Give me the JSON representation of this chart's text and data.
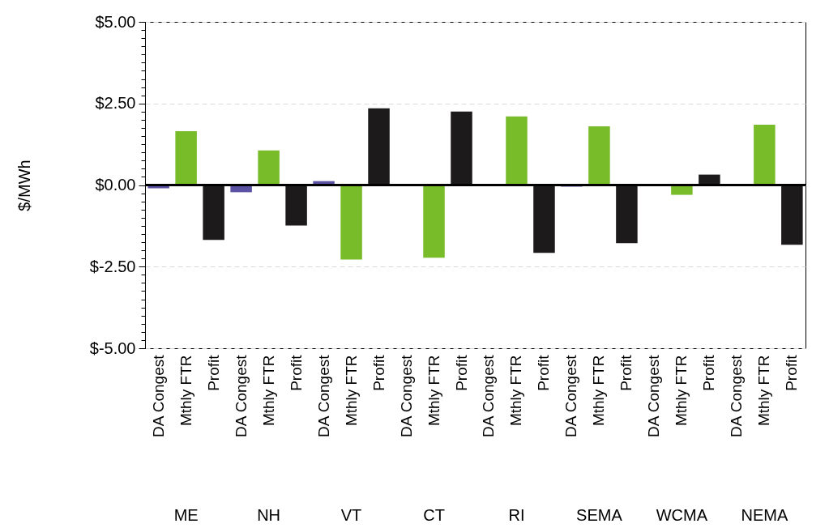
{
  "chart_data": {
    "type": "bar",
    "ylabel": "$/MWh",
    "categories": [
      "DA Congest",
      "Mthly FTR",
      "Profit",
      "DA Congest",
      "Mthly FTR",
      "Profit",
      "DA Congest",
      "Mthly FTR",
      "Profit",
      "DA Congest",
      "Mthly FTR",
      "Profit",
      "DA Congest",
      "Mthly FTR",
      "Profit",
      "DA Congest",
      "Mthly FTR",
      "Profit",
      "DA Congest",
      "Mthly FTR",
      "Profit",
      "DA Congest",
      "Mthly FTR",
      "Profit"
    ],
    "values": [
      -0.1,
      1.65,
      -1.68,
      -0.22,
      1.06,
      -1.24,
      0.12,
      -2.28,
      2.35,
      0,
      -2.23,
      2.25,
      0,
      2.1,
      -2.08,
      -0.05,
      1.8,
      -1.78,
      0,
      -0.3,
      0.32,
      0,
      1.85,
      -1.83
    ],
    "colors": [
      "#5b52a3",
      "#78bc2a",
      "#1c1a1a",
      "#5b52a3",
      "#78bc2a",
      "#1c1a1a",
      "#5b52a3",
      "#78bc2a",
      "#1c1a1a",
      "#5b52a3",
      "#78bc2a",
      "#1c1a1a",
      "#5b52a3",
      "#78bc2a",
      "#1c1a1a",
      "#5b52a3",
      "#78bc2a",
      "#1c1a1a",
      "#5b52a3",
      "#78bc2a",
      "#1c1a1a",
      "#5b52a3",
      "#78bc2a",
      "#1c1a1a"
    ],
    "annotations": [
      "ME",
      "NH",
      "VT",
      "CT",
      "RI",
      "SEMA",
      "WCMA",
      "NEMA"
    ],
    "ylim": [
      -5,
      5
    ],
    "yticks": [
      {
        "value": -5,
        "label": "$-5.00"
      },
      {
        "value": -4.75,
        "label": null
      },
      {
        "value": -4.5,
        "label": null
      },
      {
        "value": -4.25,
        "label": null
      },
      {
        "value": -4,
        "label": null
      },
      {
        "value": -3.75,
        "label": null
      },
      {
        "value": -3.5,
        "label": null
      },
      {
        "value": -3.25,
        "label": null
      },
      {
        "value": -3,
        "label": null
      },
      {
        "value": -2.75,
        "label": null
      },
      {
        "value": -2.5,
        "label": "$-2.50"
      },
      {
        "value": -2.25,
        "label": null
      },
      {
        "value": -2,
        "label": null
      },
      {
        "value": -1.75,
        "label": null
      },
      {
        "value": -1.5,
        "label": null
      },
      {
        "value": -1.25,
        "label": null
      },
      {
        "value": -1,
        "label": null
      },
      {
        "value": -0.75,
        "label": null
      },
      {
        "value": -0.5,
        "label": null
      },
      {
        "value": -0.25,
        "label": null
      },
      {
        "value": 0,
        "label": "$0.00"
      },
      {
        "value": 0.25,
        "label": null
      },
      {
        "value": 0.5,
        "label": null
      },
      {
        "value": 0.75,
        "label": null
      },
      {
        "value": 1,
        "label": null
      },
      {
        "value": 1.25,
        "label": null
      },
      {
        "value": 1.5,
        "label": null
      },
      {
        "value": 1.75,
        "label": null
      },
      {
        "value": 2,
        "label": null
      },
      {
        "value": 2.25,
        "label": null
      },
      {
        "value": 2.5,
        "label": "$2.50"
      },
      {
        "value": 2.75,
        "label": null
      },
      {
        "value": 3,
        "label": null
      },
      {
        "value": 3.25,
        "label": null
      },
      {
        "value": 3.5,
        "label": null
      },
      {
        "value": 3.75,
        "label": null
      },
      {
        "value": 4,
        "label": null
      },
      {
        "value": 4.25,
        "label": null
      },
      {
        "value": 4.5,
        "label": null
      },
      {
        "value": 4.75,
        "label": null
      },
      {
        "value": 5,
        "label": "$5.00"
      }
    ],
    "grid": "y"
  }
}
